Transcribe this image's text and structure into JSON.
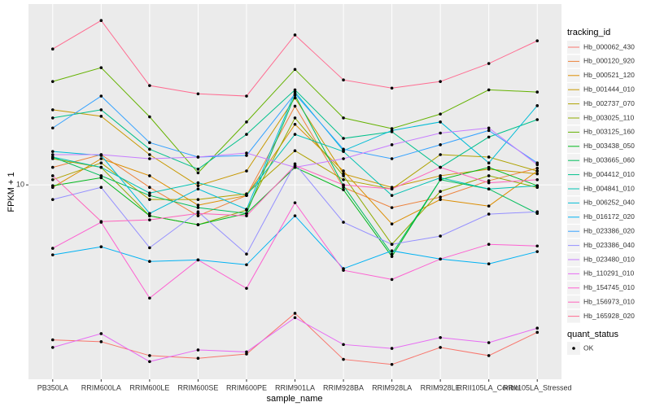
{
  "chart_data": {
    "type": "line",
    "log_y": true,
    "grid": true,
    "x_label": "sample_name",
    "y_label": "FPKM + 1",
    "categories": [
      "PB350LA",
      "RRIM600LA",
      "RRIM600LE",
      "RRIM600SE",
      "RRIM600PE",
      "RRIM901LA",
      "RRIM928BA",
      "RRIM928LA",
      "RRIM928LE",
      "RRII105LA_Control",
      "RRII105LA_Stressed"
    ],
    "ylim": [
      1.6,
      55
    ],
    "yticks": [
      10
    ],
    "legend_title": "tracking_id",
    "legend_position": "right",
    "shape_legend_title": "quant_status",
    "shape_legend_entries": [
      "OK"
    ],
    "series": [
      {
        "name": "Hb_000062_430",
        "color": "#F8766D",
        "values": [
          2.32,
          2.28,
          2.0,
          1.95,
          2.03,
          2.98,
          1.93,
          1.84,
          2.16,
          2.0,
          2.49
        ]
      },
      {
        "name": "Hb_000120_920",
        "color": "#EC823C",
        "values": [
          11.8,
          13.3,
          9.77,
          7.47,
          9.05,
          21.0,
          9.77,
          8.07,
          8.91,
          10.4,
          11.7
        ]
      },
      {
        "name": "Hb_000521_120",
        "color": "#DC8D00",
        "values": [
          9.77,
          12.8,
          10.9,
          8.26,
          9.05,
          17.7,
          11.4,
          6.92,
          8.71,
          8.19,
          11.4
        ]
      },
      {
        "name": "Hb_001444_010",
        "color": "#C79800",
        "values": [
          20.3,
          19.1,
          13.3,
          9.92,
          11.4,
          22.7,
          11.1,
          9.77,
          10.9,
          11.6,
          11.1
        ]
      },
      {
        "name": "Hb_002737_070",
        "color": "#AEA200",
        "values": [
          10.5,
          12.3,
          8.71,
          8.71,
          9.19,
          13.8,
          10.5,
          9.62,
          13.3,
          13.0,
          11.4
        ]
      },
      {
        "name": "Hb_003025_110",
        "color": "#8FAA00",
        "values": [
          12.8,
          11.8,
          7.47,
          6.87,
          7.88,
          18.8,
          10.9,
          5.71,
          9.4,
          10.9,
          9.77
        ]
      },
      {
        "name": "Hb_003125_160",
        "color": "#64B200",
        "values": [
          26.5,
          30.2,
          19.0,
          11.2,
          18.1,
          29.7,
          18.8,
          17.0,
          19.5,
          24.5,
          24.0
        ]
      },
      {
        "name": "Hb_003438_050",
        "color": "#00B81B",
        "values": [
          9.92,
          10.7,
          7.47,
          6.87,
          7.64,
          11.8,
          9.55,
          5.09,
          10.5,
          11.8,
          9.92
        ]
      },
      {
        "name": "Hb_003665_060",
        "color": "#00BD5C",
        "values": [
          13.0,
          10.9,
          9.05,
          8.07,
          7.64,
          23.3,
          9.92,
          5.21,
          10.5,
          9.62,
          7.64
        ]
      },
      {
        "name": "Hb_004412_010",
        "color": "#00C08B",
        "values": [
          18.8,
          20.3,
          14.0,
          11.6,
          16.1,
          24.5,
          15.5,
          16.5,
          11.8,
          15.7,
          18.5
        ]
      },
      {
        "name": "Hb_004841_010",
        "color": "#00C1B2",
        "values": [
          13.0,
          11.8,
          9.26,
          10.2,
          9.05,
          16.1,
          13.7,
          9.05,
          10.7,
          9.62,
          9.92
        ]
      },
      {
        "name": "Hb_006252_040",
        "color": "#00BCD6",
        "values": [
          13.7,
          13.2,
          7.64,
          9.62,
          7.94,
          24.0,
          13.8,
          16.7,
          18.1,
          12.3,
          21.1
        ]
      },
      {
        "name": "Hb_016172_020",
        "color": "#00B2F3",
        "values": [
          5.17,
          5.58,
          4.86,
          4.93,
          4.71,
          7.47,
          4.54,
          5.37,
          4.97,
          4.75,
          5.33
        ]
      },
      {
        "name": "Hb_023386_020",
        "color": "#35A2FF",
        "values": [
          17.1,
          23.1,
          14.9,
          13.0,
          13.2,
          23.6,
          14.0,
          12.8,
          14.6,
          16.7,
          12.3
        ]
      },
      {
        "name": "Hb_023386_040",
        "color": "#9590FF",
        "values": [
          8.71,
          9.77,
          5.53,
          7.76,
          5.21,
          12.2,
          7.03,
          5.71,
          6.17,
          7.59,
          7.76
        ]
      },
      {
        "name": "Hb_023480_010",
        "color": "#C77CFF",
        "values": [
          13.3,
          13.3,
          12.8,
          13.0,
          13.5,
          11.8,
          12.8,
          14.6,
          16.3,
          17.1,
          12.1
        ]
      },
      {
        "name": "Hb_110291_010",
        "color": "#E76BF3",
        "values": [
          2.16,
          2.46,
          1.89,
          2.11,
          2.07,
          2.86,
          2.22,
          2.14,
          2.37,
          2.26,
          2.59
        ]
      },
      {
        "name": "Hb_154745_010",
        "color": "#FD61D1",
        "values": [
          5.5,
          7.03,
          3.44,
          4.93,
          3.77,
          8.45,
          4.47,
          4.1,
          4.97,
          5.71,
          5.62
        ]
      },
      {
        "name": "Hb_156973_010",
        "color": "#FF62BC",
        "values": [
          10.9,
          7.08,
          7.19,
          7.64,
          7.47,
          12.0,
          10.0,
          9.62,
          11.8,
          10.2,
          10.5
        ]
      },
      {
        "name": "Hb_165928_020",
        "color": "#FF6C91",
        "values": [
          36.0,
          47.1,
          25.5,
          23.6,
          23.1,
          41.1,
          26.9,
          24.9,
          26.5,
          31.4,
          38.9
        ]
      }
    ]
  }
}
